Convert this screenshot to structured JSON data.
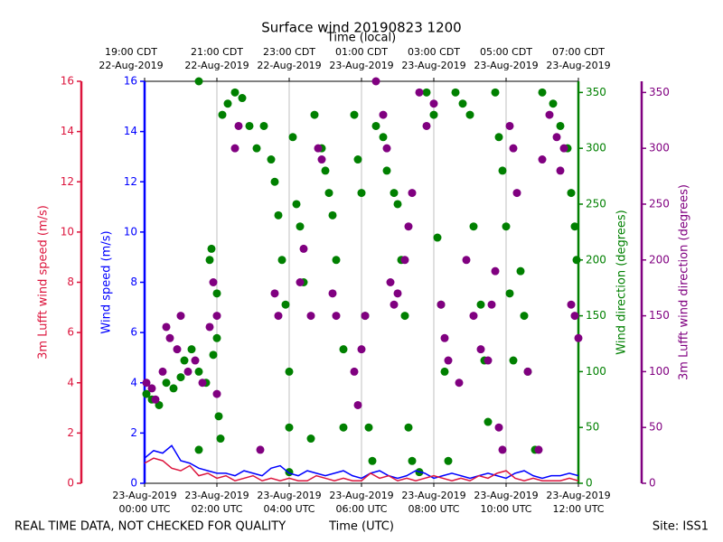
{
  "chart_data": {
    "type": "combo",
    "title": "Surface wind 20190823 1200",
    "xlabel": "Time (UTC)",
    "x2label": "Time (local)",
    "footer_left": "REAL TIME DATA, NOT CHECKED FOR QUALITY",
    "footer_right": "Site: ISS1",
    "grid": "x",
    "xlim": [
      0,
      12
    ],
    "xticks": [
      {
        "value": 0,
        "label": "23-Aug-2019\n00:00 UTC"
      },
      {
        "value": 2,
        "label": "23-Aug-2019\n02:00 UTC"
      },
      {
        "value": 4,
        "label": "23-Aug-2019\n04:00 UTC"
      },
      {
        "value": 6,
        "label": "23-Aug-2019\n06:00 UTC"
      },
      {
        "value": 8,
        "label": "23-Aug-2019\n08:00 UTC"
      },
      {
        "value": 10,
        "label": "23-Aug-2019\n10:00 UTC"
      },
      {
        "value": 12,
        "label": "23-Aug-2019\n12:00 UTC"
      }
    ],
    "x2ticks": [
      {
        "value": 0,
        "label": "19:00 CDT\n22-Aug-2019"
      },
      {
        "value": 2,
        "label": "21:00 CDT\n22-Aug-2019"
      },
      {
        "value": 4,
        "label": "23:00 CDT\n22-Aug-2019"
      },
      {
        "value": 6,
        "label": "01:00 CDT\n23-Aug-2019"
      },
      {
        "value": 8,
        "label": "03:00 CDT\n23-Aug-2019"
      },
      {
        "value": 10,
        "label": "05:00 CDT\n23-Aug-2019"
      },
      {
        "value": 12,
        "label": "07:00 CDT\n23-Aug-2019"
      }
    ],
    "yaxes": [
      {
        "label": "3m Lufft wind speed (m/s)",
        "color": "#dc143c",
        "lim": [
          0,
          16
        ],
        "ticks": [
          0,
          2,
          4,
          6,
          8,
          10,
          12,
          14,
          16
        ]
      },
      {
        "label": "Wind speed (m/s)",
        "color": "#0000ff",
        "lim": [
          0,
          16
        ],
        "ticks": [
          0,
          2,
          4,
          6,
          8,
          10,
          12,
          14,
          16
        ]
      },
      {
        "label": "Wind direction (degrees)",
        "color": "#008000",
        "lim": [
          0,
          360
        ],
        "ticks": [
          0,
          50,
          100,
          150,
          200,
          250,
          300,
          350
        ]
      },
      {
        "label": "3m Lufft wind direction (degrees)",
        "color": "#800080",
        "lim": [
          0,
          360
        ],
        "ticks": [
          0,
          50,
          100,
          150,
          200,
          250,
          300,
          350
        ]
      }
    ],
    "series": [
      {
        "type": "scatter",
        "axis": 2,
        "color": "#008000",
        "x": [
          0.05,
          0.2,
          0.4,
          0.6,
          0.8,
          1.0,
          1.1,
          1.3,
          1.5,
          1.7,
          1.9,
          2.0,
          1.8,
          1.85,
          2.0,
          2.05,
          2.1,
          1.5,
          1.5,
          2.15,
          2.3,
          2.5,
          2.7,
          2.9,
          3.1,
          3.3,
          3.5,
          3.6,
          3.7,
          3.8,
          3.9,
          4.0,
          4.0,
          4.0,
          4.1,
          4.2,
          4.3,
          4.4,
          4.6,
          4.7,
          4.9,
          5.0,
          5.1,
          5.2,
          5.3,
          5.5,
          5.5,
          5.8,
          5.9,
          6.0,
          6.1,
          6.2,
          6.3,
          6.4,
          6.6,
          6.7,
          6.9,
          7.0,
          7.1,
          7.2,
          7.3,
          7.4,
          7.6,
          7.8,
          8.0,
          8.1,
          8.2,
          8.3,
          8.4,
          8.6,
          8.8,
          9.0,
          9.1,
          9.3,
          9.4,
          9.5,
          9.7,
          9.8,
          9.9,
          10.0,
          10.1,
          10.2,
          10.4,
          10.5,
          10.6,
          10.8,
          11.0,
          11.3,
          11.5,
          11.7,
          11.8,
          11.9,
          11.95
        ],
        "values": [
          80,
          75,
          70,
          90,
          85,
          95,
          110,
          120,
          100,
          90,
          115,
          170,
          200,
          210,
          130,
          60,
          40,
          30,
          360,
          330,
          340,
          350,
          345,
          320,
          300,
          320,
          290,
          270,
          240,
          200,
          160,
          10,
          100,
          50,
          310,
          250,
          230,
          180,
          40,
          330,
          300,
          280,
          260,
          240,
          200,
          120,
          50,
          330,
          290,
          260,
          150,
          50,
          20,
          320,
          310,
          280,
          260,
          250,
          200,
          150,
          50,
          20,
          10,
          350,
          330,
          220,
          160,
          100,
          20,
          350,
          340,
          330,
          230,
          160,
          110,
          55,
          350,
          310,
          280,
          230,
          170,
          110,
          190,
          150,
          100,
          30,
          350,
          340,
          320,
          300,
          260,
          230,
          200
        ]
      },
      {
        "type": "scatter",
        "axis": 3,
        "color": "#800080",
        "x": [
          0.05,
          0.2,
          0.3,
          0.5,
          0.6,
          0.7,
          0.9,
          1.0,
          1.2,
          1.4,
          1.6,
          1.8,
          1.9,
          2.0,
          2.0,
          2.5,
          2.6,
          3.2,
          3.6,
          3.7,
          4.3,
          4.4,
          4.6,
          4.8,
          4.9,
          5.2,
          5.3,
          5.8,
          5.9,
          6.0,
          6.1,
          6.4,
          6.6,
          6.7,
          6.8,
          6.9,
          7.0,
          7.2,
          7.3,
          7.4,
          7.6,
          7.8,
          8.0,
          8.2,
          8.3,
          8.4,
          8.7,
          8.9,
          9.1,
          9.3,
          9.5,
          9.6,
          9.7,
          9.8,
          9.9,
          10.1,
          10.2,
          10.3,
          10.6,
          10.9,
          11.0,
          11.2,
          11.4,
          11.5,
          11.6,
          11.8,
          11.9,
          12.0
        ],
        "values": [
          90,
          85,
          75,
          100,
          140,
          130,
          120,
          150,
          100,
          110,
          90,
          140,
          180,
          150,
          80,
          300,
          320,
          30,
          170,
          150,
          180,
          210,
          150,
          300,
          290,
          170,
          150,
          100,
          70,
          120,
          150,
          360,
          330,
          300,
          180,
          160,
          170,
          200,
          230,
          260,
          350,
          320,
          340,
          160,
          130,
          110,
          90,
          200,
          150,
          120,
          110,
          160,
          190,
          50,
          30,
          320,
          300,
          260,
          100,
          30,
          290,
          330,
          310,
          280,
          300,
          160,
          150,
          130
        ]
      },
      {
        "type": "line",
        "axis": 1,
        "color": "#0000ff",
        "x": [
          0,
          0.25,
          0.5,
          0.75,
          1,
          1.25,
          1.5,
          1.75,
          2,
          2.25,
          2.5,
          2.75,
          3,
          3.25,
          3.5,
          3.75,
          4,
          4.25,
          4.5,
          4.75,
          5,
          5.25,
          5.5,
          5.75,
          6,
          6.25,
          6.5,
          6.75,
          7,
          7.25,
          7.5,
          7.75,
          8,
          8.25,
          8.5,
          8.75,
          9,
          9.25,
          9.5,
          9.75,
          10,
          10.25,
          10.5,
          10.75,
          11,
          11.25,
          11.5,
          11.75,
          12
        ],
        "values": [
          1.0,
          1.3,
          1.2,
          1.5,
          0.9,
          0.8,
          0.6,
          0.5,
          0.4,
          0.4,
          0.3,
          0.5,
          0.4,
          0.3,
          0.6,
          0.7,
          0.4,
          0.3,
          0.5,
          0.4,
          0.3,
          0.4,
          0.5,
          0.3,
          0.2,
          0.4,
          0.5,
          0.3,
          0.2,
          0.3,
          0.5,
          0.4,
          0.2,
          0.3,
          0.4,
          0.3,
          0.2,
          0.3,
          0.4,
          0.3,
          0.2,
          0.4,
          0.5,
          0.3,
          0.2,
          0.3,
          0.3,
          0.4,
          0.3
        ]
      },
      {
        "type": "line",
        "axis": 0,
        "color": "#dc143c",
        "x": [
          0,
          0.25,
          0.5,
          0.75,
          1,
          1.25,
          1.5,
          1.75,
          2,
          2.25,
          2.5,
          2.75,
          3,
          3.25,
          3.5,
          3.75,
          4,
          4.25,
          4.5,
          4.75,
          5,
          5.25,
          5.5,
          5.75,
          6,
          6.25,
          6.5,
          6.75,
          7,
          7.25,
          7.5,
          7.75,
          8,
          8.25,
          8.5,
          8.75,
          9,
          9.25,
          9.5,
          9.75,
          10,
          10.25,
          10.5,
          10.75,
          11,
          11.25,
          11.5,
          11.75,
          12
        ],
        "values": [
          0.8,
          1.0,
          0.9,
          0.6,
          0.5,
          0.7,
          0.3,
          0.4,
          0.2,
          0.3,
          0.1,
          0.2,
          0.3,
          0.1,
          0.2,
          0.1,
          0.2,
          0.1,
          0.1,
          0.3,
          0.2,
          0.1,
          0.2,
          0.1,
          0.1,
          0.4,
          0.2,
          0.3,
          0.1,
          0.2,
          0.1,
          0.2,
          0.3,
          0.2,
          0.1,
          0.2,
          0.1,
          0.3,
          0.2,
          0.4,
          0.5,
          0.2,
          0.1,
          0.2,
          0.1,
          0.1,
          0.1,
          0.2,
          0.1
        ]
      }
    ]
  }
}
